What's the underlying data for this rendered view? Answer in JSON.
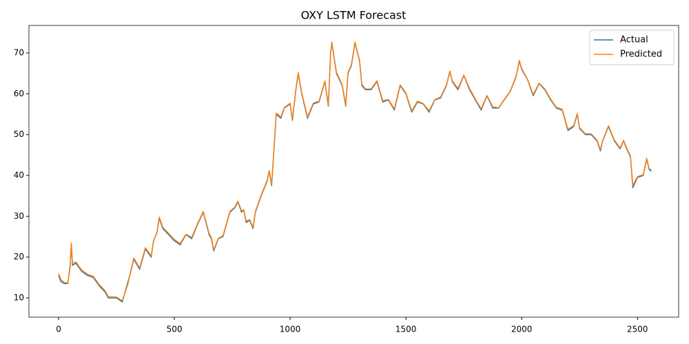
{
  "chart_data": {
    "type": "line",
    "title": "OXY LSTM Forecast",
    "x": [
      0,
      10,
      25,
      40,
      50,
      55,
      60,
      75,
      100,
      125,
      150,
      175,
      200,
      215,
      240,
      250,
      275,
      300,
      310,
      325,
      350,
      375,
      400,
      410,
      425,
      435,
      450,
      475,
      500,
      525,
      550,
      575,
      600,
      625,
      650,
      660,
      670,
      690,
      710,
      725,
      740,
      760,
      775,
      790,
      800,
      810,
      825,
      840,
      850,
      875,
      900,
      910,
      920,
      930,
      940,
      960,
      975,
      1000,
      1010,
      1025,
      1035,
      1050,
      1075,
      1100,
      1125,
      1150,
      1165,
      1175,
      1180,
      1200,
      1225,
      1240,
      1250,
      1265,
      1280,
      1300,
      1310,
      1325,
      1350,
      1375,
      1400,
      1425,
      1450,
      1475,
      1500,
      1525,
      1550,
      1575,
      1600,
      1625,
      1650,
      1675,
      1690,
      1700,
      1725,
      1750,
      1775,
      1800,
      1825,
      1850,
      1875,
      1900,
      1925,
      1950,
      1975,
      1990,
      2000,
      2025,
      2050,
      2075,
      2100,
      2125,
      2150,
      2175,
      2200,
      2225,
      2240,
      2250,
      2275,
      2300,
      2325,
      2340,
      2350,
      2375,
      2400,
      2425,
      2440,
      2450,
      2470,
      2480,
      2500,
      2525,
      2540,
      2550,
      2560
    ],
    "series": [
      {
        "name": "Actual",
        "color": "#1f77b4",
        "values": [
          15.5,
          14,
          13.5,
          13.5,
          18,
          23,
          18,
          18.5,
          16.5,
          15.5,
          15,
          13,
          11.5,
          10,
          10,
          10,
          9,
          14,
          16,
          19.5,
          17,
          22,
          20,
          24,
          26,
          29.5,
          27,
          25.5,
          24,
          23,
          25.5,
          24.5,
          28,
          31,
          25.5,
          24.5,
          21.5,
          24.5,
          25,
          28,
          31,
          32,
          33.5,
          31,
          31.5,
          28.5,
          29,
          27,
          31,
          35,
          38.5,
          41,
          37.5,
          46,
          55,
          54,
          56.5,
          57.5,
          53.5,
          61,
          65,
          60,
          54,
          57.5,
          58,
          63,
          57,
          70,
          72.5,
          65,
          62,
          57,
          65,
          67,
          72.5,
          68,
          62,
          61,
          61,
          63,
          58,
          58.5,
          56,
          62,
          60,
          55.5,
          58,
          57.5,
          55.5,
          58.5,
          59,
          62,
          65.5,
          63,
          61,
          64.5,
          61,
          58.5,
          56,
          59.5,
          56.5,
          56.5,
          58.5,
          60.5,
          64,
          68,
          66,
          63.5,
          59.5,
          62.5,
          61,
          58.5,
          56.5,
          56,
          51,
          52,
          55,
          51.5,
          50,
          50,
          48.5,
          46,
          48.5,
          52,
          48.5,
          46.5,
          48.5,
          47,
          44.5,
          37,
          39.5,
          40,
          44,
          41.5,
          41
        ]
      },
      {
        "name": "Predicted",
        "color": "#ff7f0e",
        "values": [
          16,
          14.5,
          13.8,
          13.6,
          17.5,
          23.5,
          18.5,
          18.8,
          16.8,
          15.8,
          15.3,
          13.3,
          11.8,
          10.3,
          10.2,
          10.2,
          9.3,
          13.5,
          16.2,
          19.8,
          17.3,
          22.3,
          20.3,
          23.8,
          26.2,
          29.8,
          27.3,
          25.8,
          24.3,
          23.3,
          25.6,
          24.8,
          28.2,
          31.2,
          25.8,
          24.8,
          21.8,
          24.6,
          25.2,
          28.2,
          31.2,
          32.2,
          33.7,
          31.3,
          31.6,
          28.8,
          29.2,
          27.3,
          31.2,
          35.2,
          38.7,
          41.2,
          37.8,
          46.3,
          55.3,
          54.3,
          56.6,
          57.7,
          53.8,
          61.3,
          65.2,
          60.3,
          54.3,
          57.7,
          58.2,
          63.2,
          57.3,
          70.2,
          72.7,
          65.3,
          62.2,
          57.3,
          65.2,
          67.2,
          72.7,
          68.2,
          62.3,
          61.2,
          61.2,
          63.2,
          58.3,
          58.6,
          56.3,
          62.2,
          60.2,
          55.8,
          58.2,
          57.6,
          55.8,
          58.6,
          59.2,
          62.2,
          65.6,
          63.2,
          61.3,
          64.6,
          61.3,
          58.7,
          56.3,
          59.6,
          56.8,
          56.6,
          58.6,
          60.6,
          64.2,
          68.2,
          66.2,
          63.6,
          59.8,
          62.6,
          61.2,
          58.7,
          56.7,
          56.2,
          51.3,
          52.2,
          55.2,
          51.7,
          50.2,
          50.2,
          48.7,
          46.3,
          48.6,
          52.2,
          48.7,
          46.7,
          48.6,
          47.2,
          44.7,
          37.5,
          39.7,
          40.2,
          44.2,
          41.7,
          41.3
        ]
      }
    ],
    "xlim": [
      -128,
      2678
    ],
    "ylim": [
      5.28,
      76.74
    ],
    "xticks": [
      0,
      500,
      1000,
      1500,
      2000,
      2500
    ],
    "yticks": [
      10,
      20,
      30,
      40,
      50,
      60,
      70
    ],
    "legend": "upper right"
  }
}
